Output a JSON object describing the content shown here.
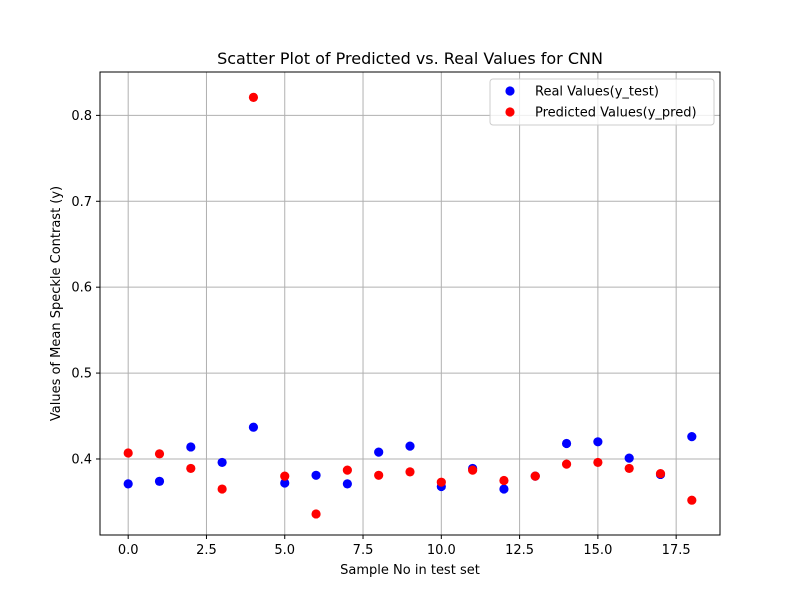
{
  "chart_data": {
    "type": "scatter",
    "title": "Scatter Plot of Predicted vs. Real Values for CNN",
    "xlabel": "Sample No in test set",
    "ylabel": "Values of Mean Speckle Contrast (y)",
    "xlim": [
      -0.9,
      18.9
    ],
    "ylim": [
      0.3115,
      0.8505
    ],
    "xticks": [
      0,
      2.5,
      5,
      7.5,
      10,
      12.5,
      15,
      17.5
    ],
    "xtick_labels": [
      "0.0",
      "2.5",
      "5.0",
      "7.5",
      "10.0",
      "12.5",
      "15.0",
      "17.5"
    ],
    "yticks": [
      0.4,
      0.5,
      0.6,
      0.7,
      0.8
    ],
    "ytick_labels": [
      "0.4",
      "0.5",
      "0.6",
      "0.7",
      "0.8"
    ],
    "grid": true,
    "legend_position": "top-right",
    "series": [
      {
        "name": "Real Values(y_test)",
        "color": "#0000ff",
        "x": [
          0,
          1,
          2,
          3,
          4,
          5,
          6,
          7,
          8,
          9,
          10,
          11,
          12,
          13,
          14,
          15,
          16,
          17,
          18
        ],
        "y": [
          0.371,
          0.374,
          0.414,
          0.396,
          0.437,
          0.372,
          0.381,
          0.371,
          0.408,
          0.415,
          0.368,
          0.389,
          0.365,
          0.38,
          0.418,
          0.42,
          0.401,
          0.382,
          0.426
        ]
      },
      {
        "name": "Predicted Values(y_pred)",
        "color": "#ff0000",
        "x": [
          0,
          1,
          2,
          3,
          4,
          5,
          6,
          7,
          8,
          9,
          10,
          11,
          12,
          13,
          14,
          15,
          16,
          17,
          18
        ],
        "y": [
          0.407,
          0.406,
          0.389,
          0.365,
          0.821,
          0.38,
          0.336,
          0.387,
          0.381,
          0.385,
          0.373,
          0.387,
          0.375,
          0.38,
          0.394,
          0.396,
          0.389,
          0.383,
          0.352
        ]
      }
    ]
  }
}
